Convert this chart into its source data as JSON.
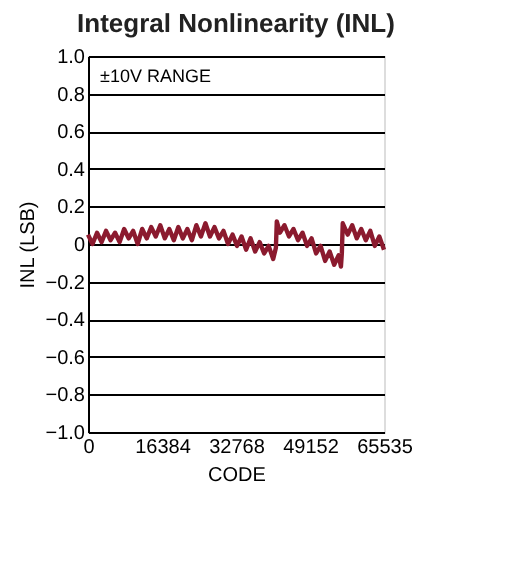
{
  "chart_data": {
    "type": "line",
    "title": "Integral Nonlinearity (INL)",
    "xlabel": "CODE",
    "ylabel": "INL (LSB)",
    "annotations": [
      "±10V RANGE"
    ],
    "x": [
      0,
      1000,
      2000,
      3000,
      4000,
      5000,
      6000,
      7000,
      8000,
      9000,
      10000,
      11000,
      12000,
      13000,
      14000,
      15000,
      16000,
      17000,
      18000,
      19000,
      20000,
      21000,
      22000,
      23000,
      24000,
      25000,
      26000,
      27000,
      28000,
      29000,
      30000,
      31000,
      32000,
      33000,
      34000,
      35000,
      36000,
      37000,
      38000,
      39000,
      40000,
      41000,
      41600,
      41800,
      42500,
      43500,
      44500,
      45500,
      46500,
      47500,
      48500,
      49500,
      50500,
      51500,
      52500,
      53500,
      54500,
      55500,
      56000,
      56200,
      56400,
      57500,
      58500,
      59500,
      60500,
      61500,
      62500,
      63500,
      64500,
      65535
    ],
    "series": [
      {
        "color": "#8b1a2e",
        "values": [
          0.05,
          0.0,
          0.06,
          0.01,
          0.07,
          0.02,
          0.06,
          0.01,
          0.08,
          0.03,
          0.07,
          0.0,
          0.08,
          0.03,
          0.09,
          0.04,
          0.1,
          0.03,
          0.08,
          0.02,
          0.09,
          0.03,
          0.08,
          0.02,
          0.1,
          0.04,
          0.11,
          0.04,
          0.09,
          0.03,
          0.07,
          0.0,
          0.05,
          -0.01,
          0.04,
          -0.03,
          0.03,
          -0.04,
          0.01,
          -0.05,
          -0.01,
          -0.08,
          -0.02,
          0.12,
          0.06,
          0.1,
          0.04,
          0.08,
          0.02,
          0.06,
          -0.01,
          0.03,
          -0.05,
          -0.01,
          -0.09,
          -0.04,
          -0.11,
          -0.06,
          -0.12,
          -0.05,
          0.11,
          0.05,
          0.1,
          0.03,
          0.08,
          0.02,
          0.07,
          -0.01,
          0.04,
          -0.03
        ]
      }
    ],
    "xlim": [
      0,
      65535
    ],
    "xticks": [
      0,
      16384,
      32768,
      49152,
      65535
    ],
    "ylim": [
      -1.0,
      1.0
    ],
    "yticks": [
      {
        "value": -1.0,
        "label": "−1.0"
      },
      {
        "value": -0.8,
        "label": "−0.8"
      },
      {
        "value": -0.6,
        "label": "−0.6"
      },
      {
        "value": -0.4,
        "label": "−0.4"
      },
      {
        "value": -0.2,
        "label": "−0.2"
      },
      0,
      0.2,
      0.4,
      0.6,
      0.8,
      {
        "value": 1.0,
        "label": "1.0"
      }
    ],
    "grid": "y",
    "line_style": "solid",
    "marker": "none"
  }
}
